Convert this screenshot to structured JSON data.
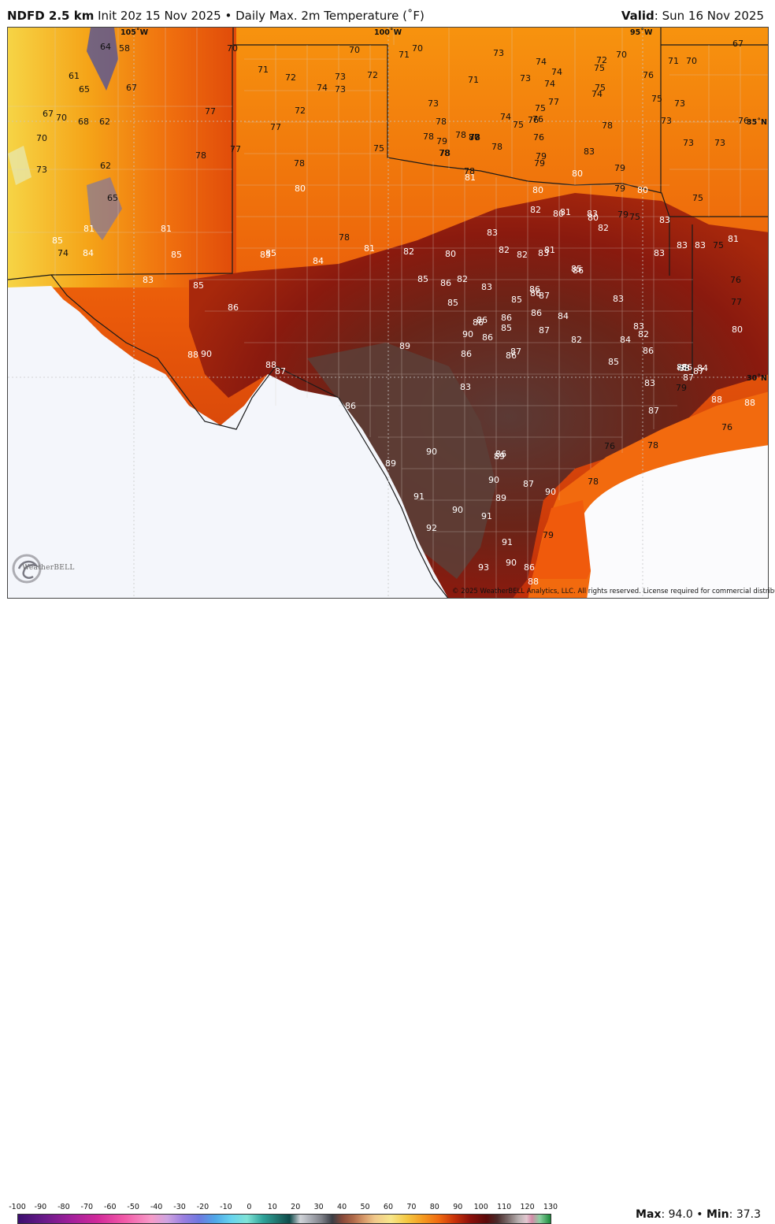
{
  "header": {
    "product": "NDFD 2.5 km",
    "init": "Init 20z 15 Nov 2025",
    "separator": "•",
    "field": "Daily Max. 2m Temperature (˚F)",
    "valid_label": "Valid",
    "valid_value": ": Sun 16 Nov 2025"
  },
  "map": {
    "longitude_labels": [
      "105˚W",
      "100˚W",
      "95˚W"
    ],
    "latitude_labels": [
      "35˚N",
      "30˚N"
    ],
    "temperature_labels": [
      "64",
      "58",
      "70",
      "70",
      "71",
      "70",
      "67",
      "61",
      "65",
      "67",
      "71",
      "72",
      "73",
      "72",
      "74",
      "73",
      "72",
      "73",
      "74",
      "72",
      "70",
      "71",
      "70",
      "67",
      "70",
      "68",
      "62",
      "77",
      "73",
      "71",
      "73",
      "74",
      "75",
      "76",
      "74",
      "74",
      "75",
      "77",
      "75",
      "73",
      "75",
      "76",
      "75",
      "74",
      "70",
      "77",
      "78",
      "76",
      "78",
      "77",
      "78",
      "79",
      "83",
      "78",
      "73",
      "76",
      "73",
      "73",
      "62",
      "77",
      "78",
      "75",
      "78",
      "76",
      "79",
      "73",
      "78",
      "78",
      "80",
      "78",
      "79",
      "80",
      "80",
      "79",
      "65",
      "78",
      "80",
      "78",
      "81",
      "80",
      "82",
      "81",
      "80",
      "79",
      "75",
      "81",
      "81",
      "78",
      "81",
      "82",
      "80",
      "83",
      "82",
      "82",
      "81",
      "80",
      "83",
      "82",
      "79",
      "75",
      "83",
      "83",
      "83",
      "81",
      "85",
      "85",
      "85",
      "85",
      "84",
      "82",
      "85",
      "83",
      "83",
      "75",
      "76",
      "74",
      "84",
      "83",
      "85",
      "86",
      "86",
      "85",
      "83",
      "85",
      "86",
      "86",
      "87",
      "86",
      "85",
      "86",
      "86",
      "87",
      "89",
      "86",
      "90",
      "86",
      "86",
      "85",
      "86",
      "84",
      "83",
      "83",
      "77",
      "80",
      "88",
      "90",
      "88",
      "87",
      "86",
      "87",
      "86",
      "82",
      "82",
      "84",
      "86",
      "83",
      "86",
      "87",
      "86",
      "87",
      "85",
      "79",
      "74",
      "74",
      "88",
      "86",
      "87",
      "88",
      "88",
      "84",
      "76",
      "90",
      "89",
      "86",
      "83",
      "76",
      "78",
      "89",
      "78",
      "91",
      "90",
      "87",
      "90",
      "89",
      "90",
      "91",
      "92",
      "91",
      "79",
      "93",
      "90",
      "86",
      "88"
    ]
  },
  "copyright": "© 2025 WeatherBELL Analytics, LLC. All rights reserved. License required for commercial distribution.",
  "logo_text": "WeatherBELL",
  "legend": {
    "ticks": [
      "-100",
      "-90",
      "-80",
      "-70",
      "-60",
      "-50",
      "-40",
      "-30",
      "-20",
      "-10",
      "0",
      "10",
      "20",
      "30",
      "40",
      "50",
      "60",
      "70",
      "80",
      "90",
      "100",
      "110",
      "120",
      "130"
    ],
    "max_label": "Max",
    "max_value": ": 94.0",
    "bullet": "•",
    "min_label": "Min",
    "min_value": ": 37.3"
  },
  "colors": {
    "hot_core": "#5a1a12",
    "warm": "#b4320a",
    "orange": "#f07a10",
    "mountain_yellow": "#f5c430",
    "mexico_land": "#f4f6fb",
    "gulf_water": "#f26a0e"
  }
}
